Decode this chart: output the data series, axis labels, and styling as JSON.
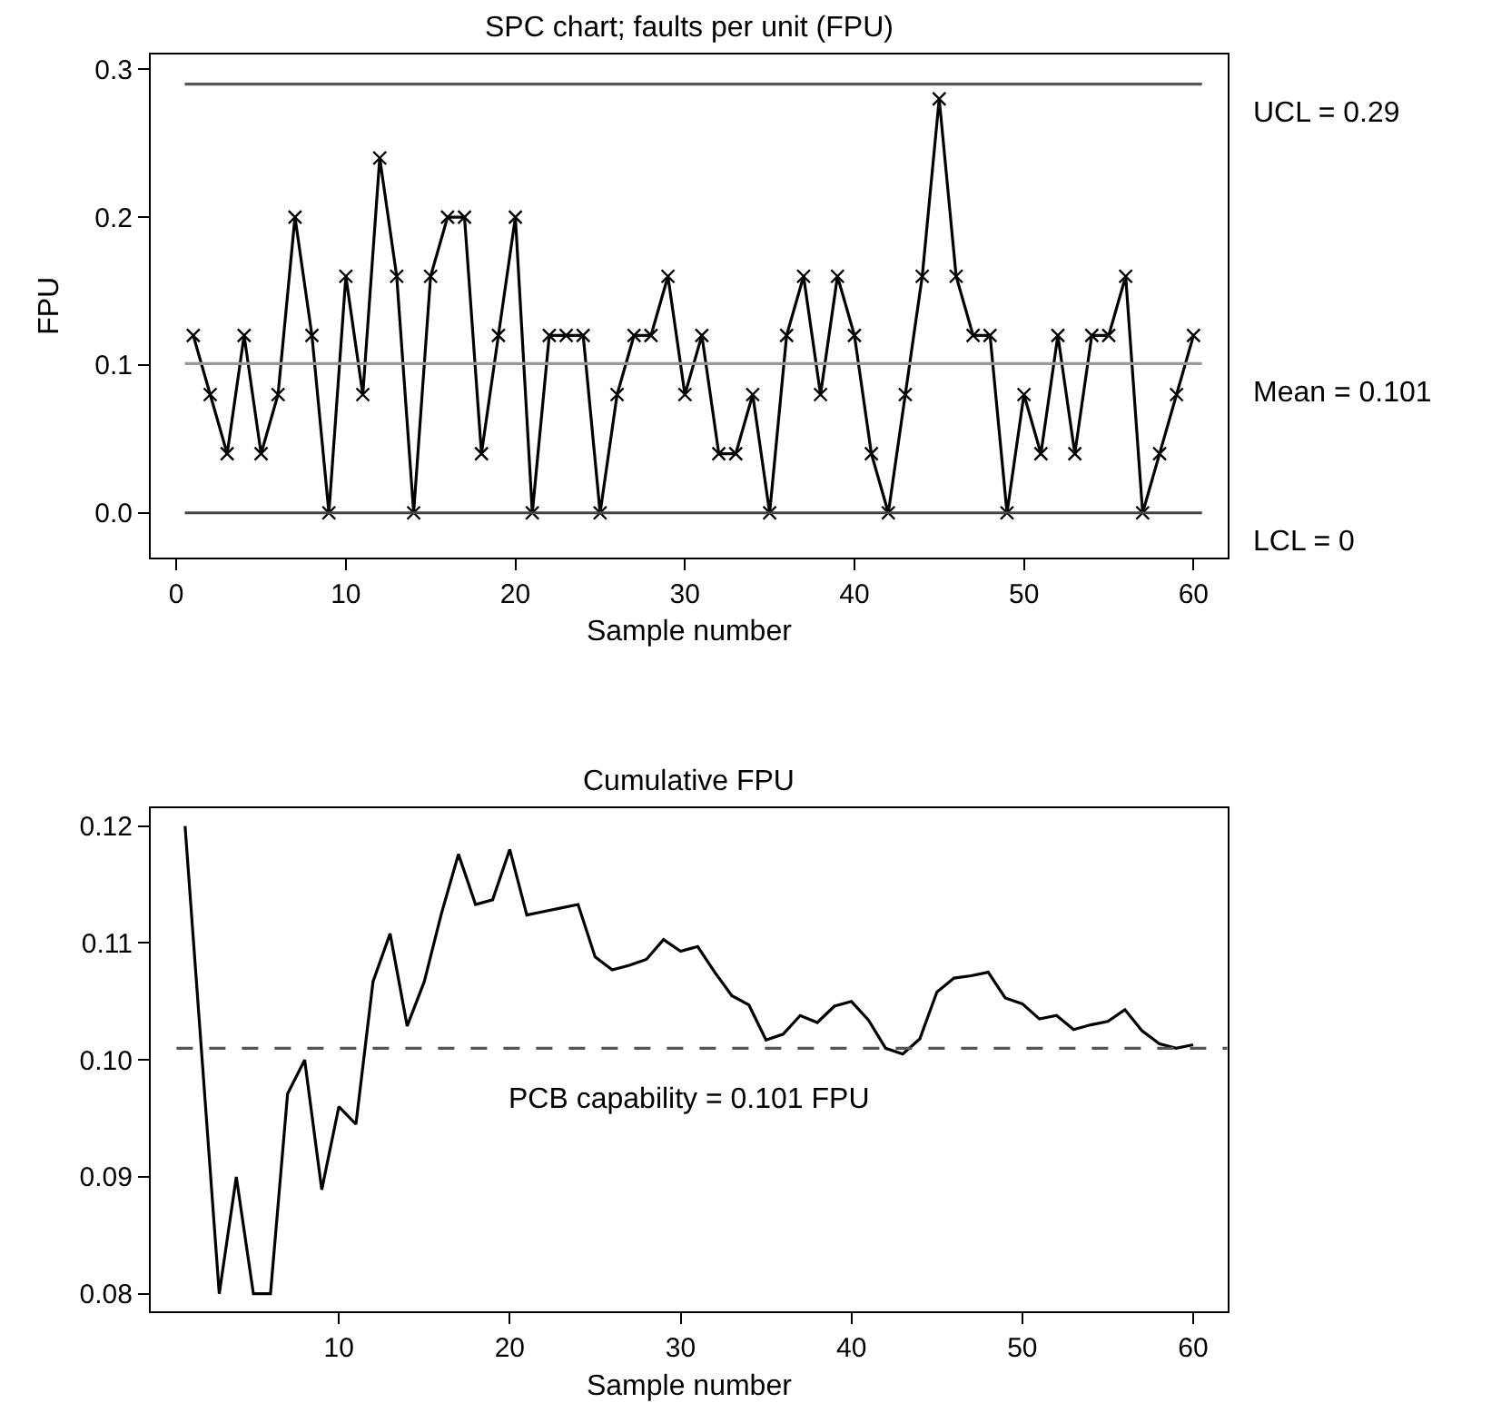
{
  "chart_data": [
    {
      "type": "line",
      "title": "SPC chart; faults per unit (FPU)",
      "xlabel": "Sample number",
      "ylabel": "FPU",
      "x": [
        1,
        2,
        3,
        4,
        5,
        6,
        7,
        8,
        9,
        10,
        11,
        12,
        13,
        14,
        15,
        16,
        17,
        18,
        19,
        20,
        21,
        22,
        23,
        24,
        25,
        26,
        27,
        28,
        29,
        30,
        31,
        32,
        33,
        34,
        35,
        36,
        37,
        38,
        39,
        40,
        41,
        42,
        43,
        44,
        45,
        46,
        47,
        48,
        49,
        50,
        51,
        52,
        53,
        54,
        55,
        56,
        57,
        58,
        59,
        60
      ],
      "series": [
        {
          "color": "#000000",
          "values": [
            0.12,
            0.08,
            0.04,
            0.12,
            0.04,
            0.08,
            0.2,
            0.12,
            0,
            0.16,
            0.08,
            0.24,
            0.16,
            0,
            0.16,
            0.2,
            0.2,
            0.04,
            0.12,
            0.2,
            0,
            0.12,
            0.12,
            0.12,
            0,
            0.08,
            0.12,
            0.12,
            0.16,
            0.08,
            0.12,
            0.04,
            0.04,
            0.08,
            0,
            0.12,
            0.16,
            0.08,
            0.16,
            0.12,
            0.04,
            0,
            0.08,
            0.16,
            0.28,
            0.16,
            0.12,
            0.12,
            0,
            0.08,
            0.04,
            0.12,
            0.04,
            0.12,
            0.12,
            0.16,
            0,
            0.04,
            0.08,
            0.12
          ]
        }
      ],
      "xlim": [
        -1.5,
        62
      ],
      "xticks": [
        0,
        10,
        20,
        30,
        40,
        50,
        60
      ],
      "ylim": [
        -0.03,
        0.31
      ],
      "yticks": [
        {
          "value": 0,
          "label": "0.0"
        },
        0.1,
        0.2,
        0.3
      ],
      "ref_lines": [
        {
          "axis": "y",
          "value": 0.29,
          "label": "UCL = 0.29",
          "color": "#555555"
        },
        {
          "axis": "y",
          "value": 0.101,
          "label": "Mean = 0.101",
          "color": "#999999"
        },
        {
          "axis": "y",
          "value": 0,
          "label": "LCL = 0",
          "color": "#444444"
        }
      ],
      "marker": "cross",
      "line_style": "solid"
    },
    {
      "type": "line",
      "title": "Cumulative FPU",
      "xlabel": "Sample number",
      "x": [
        1,
        2,
        3,
        4,
        5,
        6,
        7,
        8,
        9,
        10,
        11,
        12,
        13,
        14,
        15,
        16,
        17,
        18,
        19,
        20,
        21,
        22,
        23,
        24,
        25,
        26,
        27,
        28,
        29,
        30,
        31,
        32,
        33,
        34,
        35,
        36,
        37,
        38,
        39,
        40,
        41,
        42,
        43,
        44,
        45,
        46,
        47,
        48,
        49,
        50,
        51,
        52,
        53,
        54,
        55,
        56,
        57,
        58,
        59,
        60
      ],
      "series": [
        {
          "color": "#000000",
          "values": [
            0.12,
            0.1,
            0.08,
            0.09,
            0.08,
            0.08,
            0.0971,
            0.1,
            0.0889,
            0.096,
            0.0945,
            0.1067,
            0.1108,
            0.1029,
            0.1067,
            0.1125,
            0.1176,
            0.1133,
            0.1137,
            0.118,
            0.1124,
            0.1127,
            0.113,
            0.1133,
            0.1088,
            0.1077,
            0.1081,
            0.1086,
            0.1103,
            0.1093,
            0.1097,
            0.1075,
            0.1055,
            0.1047,
            0.1017,
            0.1022,
            0.1038,
            0.1032,
            0.1046,
            0.105,
            0.1034,
            0.101,
            0.1005,
            0.1018,
            0.1058,
            0.107,
            0.1072,
            0.1075,
            0.1053,
            0.1048,
            0.1035,
            0.1038,
            0.1026,
            0.103,
            0.1033,
            0.1043,
            0.1025,
            0.1014,
            0.101,
            0.1013
          ]
        }
      ],
      "xlim": [
        -1,
        62
      ],
      "xticks": [
        10,
        20,
        30,
        40,
        50,
        60
      ],
      "ylim": [
        0.0785,
        0.1215
      ],
      "yticks": [
        {
          "value": 0.08,
          "label": "0.08"
        },
        {
          "value": 0.09,
          "label": "0.09"
        },
        {
          "value": 0.1,
          "label": "0.10"
        },
        {
          "value": 0.11,
          "label": "0.11"
        },
        {
          "value": 0.12,
          "label": "0.12"
        }
      ],
      "ref_lines": [
        {
          "axis": "y",
          "value": 0.101,
          "color": "#555555",
          "line_style": "dashed"
        }
      ],
      "annotations": [
        "PCB capability = 0.101 FPU"
      ],
      "marker": "none",
      "line_style": "solid"
    }
  ]
}
